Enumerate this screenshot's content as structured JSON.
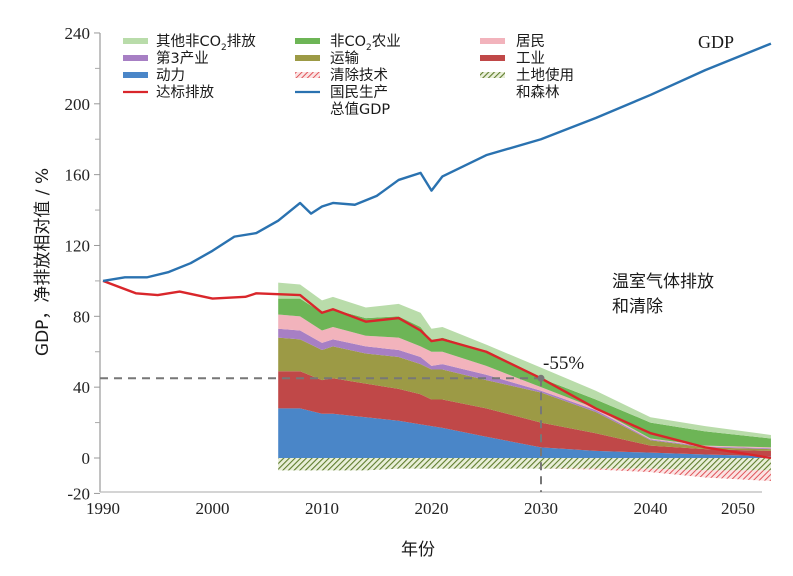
{
  "chart_data": {
    "type": "area",
    "title": "",
    "xlabel": "年份",
    "ylabel": "GDP，净排放相对值 / %",
    "xlim": [
      1990,
      2051
    ],
    "ylim": [
      -20,
      240
    ],
    "x_ticks": [
      1990,
      2000,
      2010,
      2020,
      2030,
      2040,
      2050
    ],
    "x_tick_labels": [
      "1990",
      "2000",
      "2010",
      "2020",
      "2030",
      "2040",
      "2050"
    ],
    "y_ticks": [
      240,
      200,
      160,
      120,
      80,
      40,
      0,
      -20
    ],
    "y_tick_labels": [
      "240",
      "200",
      "160",
      "120",
      "80",
      "40",
      "0",
      "-20"
    ],
    "y_minor_ticks": [
      220,
      180,
      140,
      100,
      60,
      20
    ],
    "grid": false,
    "legend_placement": "top-left",
    "legend": [
      {
        "key": "other_non_co2",
        "label": "其他非CO",
        "sub": "2",
        "label_suffix": "排放",
        "color": "#b9dcaa",
        "kind": "area"
      },
      {
        "key": "tertiary",
        "label": "第3产业",
        "color": "#a77fc4",
        "kind": "area"
      },
      {
        "key": "power",
        "label": "动力",
        "color": "#4a86c8",
        "kind": "area"
      },
      {
        "key": "target",
        "label": "达标排放",
        "color": "#d9262b",
        "kind": "line"
      },
      {
        "key": "non_co2_agri",
        "label": "非CO",
        "sub": "2",
        "label_suffix": "农业",
        "color": "#6db556",
        "kind": "area"
      },
      {
        "key": "transport",
        "label": "运输",
        "color": "#9c9a45",
        "kind": "area"
      },
      {
        "key": "removal_tech",
        "label": "清除技术",
        "color": "#e0555a",
        "kind": "hatch"
      },
      {
        "key": "gdp",
        "label": "国民生产",
        "label_line2": "总值GDP",
        "color": "#2a72b0",
        "kind": "line"
      },
      {
        "key": "residential",
        "label": "居民",
        "color": "#f2b3bc",
        "kind": "area"
      },
      {
        "key": "industry",
        "label": "工业",
        "color": "#c04848",
        "kind": "area"
      },
      {
        "key": "land_forest",
        "label": "土地使用",
        "label_line2": "和森林",
        "color": "#5f7d2e",
        "kind": "hatch"
      }
    ],
    "annotations": {
      "gdp_label": "GDP",
      "area_label_line1": "温室气体排放",
      "area_label_line2": "和清除",
      "target_pct": "-55%",
      "target_point": {
        "x": 2030,
        "y": 45
      }
    },
    "gdp": {
      "name": "国民生产总值GDP",
      "x": [
        1990,
        1992,
        1994,
        1996,
        1998,
        2000,
        2002,
        2004,
        2006,
        2008,
        2009,
        2010,
        2011,
        2013,
        2015,
        2017,
        2019,
        2020,
        2021,
        2023,
        2025,
        2030,
        2035,
        2040,
        2045,
        2051
      ],
      "y": [
        100,
        102,
        102,
        105,
        110,
        117,
        125,
        127,
        134,
        144,
        138,
        142,
        144,
        143,
        148,
        157,
        161,
        151,
        159,
        165,
        171,
        180,
        192,
        205,
        219,
        234
      ]
    },
    "target": {
      "name": "达标排放",
      "x": [
        1990,
        1993,
        1995,
        1997,
        2000,
        2003,
        2004,
        2006,
        2008,
        2010,
        2011,
        2014,
        2017,
        2019,
        2020,
        2021,
        2025,
        2030,
        2035,
        2040,
        2045,
        2049,
        2051
      ],
      "y": [
        100,
        93,
        92,
        94,
        90,
        91,
        93,
        92.5,
        92,
        82,
        84,
        77,
        79,
        72,
        66,
        67,
        60,
        45,
        28,
        14,
        6,
        2,
        0
      ]
    },
    "stack_x": [
      2006,
      2008,
      2010,
      2011,
      2014,
      2017,
      2019,
      2020,
      2021,
      2025,
      2030,
      2035,
      2040,
      2045,
      2051
    ],
    "series": [
      {
        "key": "power",
        "name": "动力",
        "values": [
          28,
          28,
          25,
          25,
          23,
          21,
          19,
          18,
          17,
          12,
          6,
          4,
          3,
          2,
          1
        ]
      },
      {
        "key": "industry",
        "name": "工业",
        "values": [
          21,
          21,
          19,
          20,
          19,
          18,
          17,
          15,
          16,
          16,
          14,
          10,
          4,
          3,
          3
        ]
      },
      {
        "key": "transport",
        "name": "运输",
        "values": [
          19,
          18,
          17,
          18,
          17,
          18,
          17,
          17,
          17,
          16,
          17,
          12,
          3,
          1,
          1
        ]
      },
      {
        "key": "tertiary",
        "name": "第3产业",
        "values": [
          5,
          5,
          4,
          4,
          4,
          4,
          4,
          2,
          3,
          3,
          1,
          1,
          0.5,
          0.5,
          0.5
        ]
      },
      {
        "key": "residential",
        "name": "居民",
        "values": [
          8,
          8,
          7,
          7,
          6,
          7,
          6,
          8,
          7,
          5,
          2,
          1,
          0.5,
          0.5,
          0.5
        ]
      },
      {
        "key": "non_co2_agri",
        "name": "非CO2农业",
        "values": [
          9,
          10,
          10,
          10,
          10,
          12,
          11,
          6,
          8,
          8,
          5,
          5,
          9,
          8,
          5
        ]
      },
      {
        "key": "other_non_co2",
        "name": "其他非CO2排放",
        "values": [
          9,
          8,
          7,
          7,
          6,
          7,
          8,
          7,
          6,
          4,
          6,
          5,
          3,
          3,
          2
        ]
      }
    ],
    "negative_series": [
      {
        "key": "land_forest",
        "name": "土地使用和森林",
        "values": [
          -7,
          -7,
          -7,
          -7,
          -7,
          -6,
          -6,
          -6,
          -6,
          -6,
          -6,
          -6,
          -6,
          -7,
          -7
        ]
      },
      {
        "key": "removal_tech",
        "name": "清除技术",
        "values": [
          0,
          0,
          0,
          0,
          0,
          0,
          0,
          0,
          0,
          0,
          0,
          -0.5,
          -2,
          -4,
          -6
        ]
      }
    ],
    "reference_lines": {
      "horizontal_y": 45,
      "vertical_x": 2030
    }
  }
}
